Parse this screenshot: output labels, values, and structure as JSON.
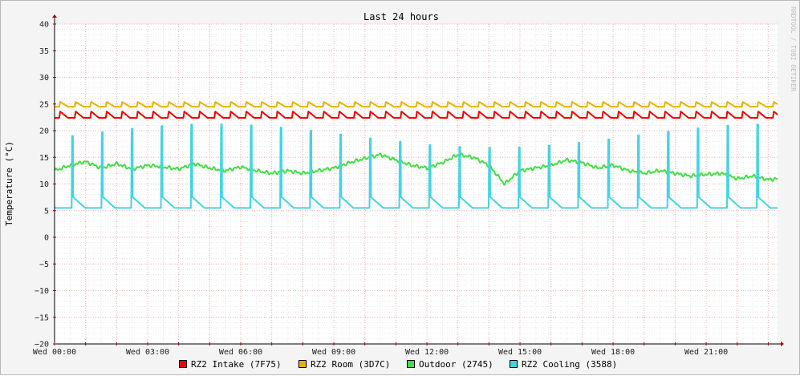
{
  "chart_data": {
    "type": "line",
    "title": "Last 24 hours",
    "ylabel": "Temperature (°C)",
    "xlabel": "",
    "watermark": "RRDTOOL / TOBI OETIKER",
    "ylim": [
      -20,
      40
    ],
    "xlim": [
      0,
      23.3
    ],
    "y_ticks": [
      40,
      35,
      30,
      25,
      20,
      15,
      10,
      5,
      0,
      -5,
      -10,
      -15,
      -20
    ],
    "x_ticks": [
      {
        "hour": 0,
        "label": "Wed 00:00"
      },
      {
        "hour": 3,
        "label": "Wed 03:00"
      },
      {
        "hour": 6,
        "label": "Wed 06:00"
      },
      {
        "hour": 9,
        "label": "Wed 09:00"
      },
      {
        "hour": 12,
        "label": "Wed 12:00"
      },
      {
        "hour": 15,
        "label": "Wed 15:00"
      },
      {
        "hour": 18,
        "label": "Wed 18:00"
      },
      {
        "hour": 21,
        "label": "Wed 21:00"
      }
    ],
    "grid": true,
    "legend_position": "bottom",
    "series": [
      {
        "name": "RZ2 Intake (7F75)",
        "color": "#ee0000",
        "pattern": {
          "kind": "sawtooth",
          "period": 0.5,
          "phase": 0.15,
          "base": 22.4,
          "peak": 23.6
        }
      },
      {
        "name": "RZ2 Room (3D7C)",
        "color": "#e5b400",
        "pattern": {
          "kind": "sawtooth",
          "period": 0.5,
          "phase": 0.15,
          "base": 24.5,
          "peak": 25.4
        }
      },
      {
        "name": "Outdoor (2745)",
        "color": "#44dd44",
        "x": [
          0,
          0.5,
          1,
          1.5,
          2,
          2.5,
          3,
          3.5,
          4,
          4.5,
          5,
          5.5,
          6,
          6.5,
          7,
          7.5,
          8,
          8.5,
          9,
          9.5,
          10,
          10.5,
          11,
          11.5,
          12,
          12.5,
          13,
          13.5,
          14,
          14.5,
          15,
          15.5,
          16,
          16.5,
          17,
          17.5,
          18,
          18.5,
          19,
          19.5,
          20,
          20.5,
          21,
          21.5,
          22,
          22.5,
          23,
          23.3
        ],
        "values": [
          12.5,
          13.5,
          14.2,
          13.0,
          13.8,
          12.8,
          13.5,
          13.2,
          12.8,
          13.8,
          13.0,
          12.5,
          13.2,
          12.5,
          12.0,
          12.5,
          12.0,
          12.5,
          13.0,
          14.0,
          14.8,
          15.5,
          14.5,
          13.5,
          13.0,
          14.0,
          15.5,
          15.0,
          13.5,
          10.0,
          12.5,
          13.0,
          13.5,
          14.5,
          14.0,
          13.0,
          13.5,
          12.5,
          12.0,
          12.5,
          12.0,
          11.5,
          11.8,
          12.0,
          11.0,
          11.5,
          10.8,
          11.0
        ]
      },
      {
        "name": "RZ2 Cooling (3588)",
        "color": "#44d4e0",
        "pattern": {
          "kind": "spike",
          "period": 0.96,
          "phase": 0.55,
          "base": 5.5,
          "high": 7.5,
          "spike_peak": 19.0
        }
      }
    ]
  }
}
